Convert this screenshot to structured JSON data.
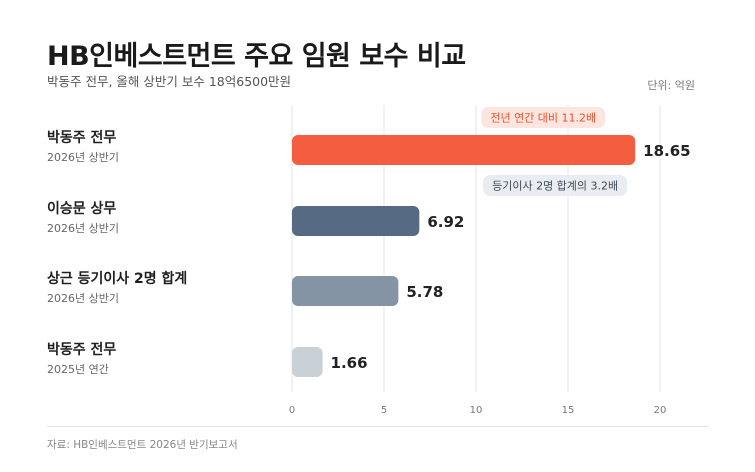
{
  "header": {
    "title": "HB인베스트먼트 주요 임원 보수 비교",
    "subtitle": "박동주 전무, 올해 상반기 보수 18억6500만원",
    "unit": "단위: 억원"
  },
  "footer": {
    "source": "자료: HB인베스트먼트 2026년 반기보고서"
  },
  "chart_data": {
    "type": "bar",
    "orientation": "horizontal",
    "categories": [
      {
        "name": "박동주 전무",
        "period": "2026년 상반기"
      },
      {
        "name": "이승문 상무",
        "period": "2026년 상반기"
      },
      {
        "name": "상근 등기이사 2명 합계",
        "period": "2026년 상반기"
      },
      {
        "name": "박동주 전무",
        "period": "2025년 연간"
      }
    ],
    "values": [
      18.65,
      6.92,
      5.78,
      1.66
    ],
    "value_labels": [
      "18.65",
      "6.92",
      "5.78",
      "1.66"
    ],
    "colors": [
      "#f45d3f",
      "#566b83",
      "#8594a4",
      "#c9d0d6"
    ],
    "xlim": [
      0,
      20
    ],
    "xticks": [
      0,
      5,
      10,
      15,
      20
    ],
    "grid": true,
    "annotations": [
      {
        "text": "전년 연간 대비 11.2배",
        "bar": 0,
        "position": "above",
        "bg": "#fde6df",
        "color": "#e8512f"
      },
      {
        "text": "등기이사 2명 합계의 3.2배",
        "bar": 0,
        "position": "below",
        "bg": "#e9edf1",
        "color": "#3d4a58"
      }
    ]
  }
}
